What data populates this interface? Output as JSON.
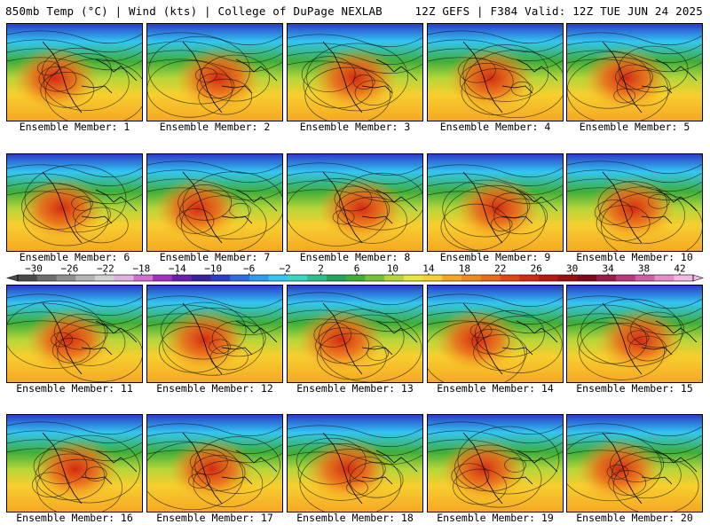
{
  "header": {
    "left_text": "850mb Temp (°C) | Wind (kts) | College of DuPage NEXLAB",
    "right_text": "12Z GEFS | F384 Valid: 12Z TUE JUN 24 2025"
  },
  "members": [
    {
      "label": "Ensemble Member: 1"
    },
    {
      "label": "Ensemble Member: 2"
    },
    {
      "label": "Ensemble Member: 3"
    },
    {
      "label": "Ensemble Member: 4"
    },
    {
      "label": "Ensemble Member: 5"
    },
    {
      "label": "Ensemble Member: 6"
    },
    {
      "label": "Ensemble Member: 7"
    },
    {
      "label": "Ensemble Member: 8"
    },
    {
      "label": "Ensemble Member: 9"
    },
    {
      "label": "Ensemble Member: 10"
    },
    {
      "label": "Ensemble Member: 11"
    },
    {
      "label": "Ensemble Member: 12"
    },
    {
      "label": "Ensemble Member: 13"
    },
    {
      "label": "Ensemble Member: 14"
    },
    {
      "label": "Ensemble Member: 15"
    },
    {
      "label": "Ensemble Member: 16"
    },
    {
      "label": "Ensemble Member: 17"
    },
    {
      "label": "Ensemble Member: 18"
    },
    {
      "label": "Ensemble Member: 19"
    },
    {
      "label": "Ensemble Member: 20"
    }
  ],
  "colorbar": {
    "tick_labels": [
      "−30",
      "−26",
      "−22",
      "−18",
      "−14",
      "−10",
      "−6",
      "−2",
      "2",
      "6",
      "10",
      "14",
      "18",
      "22",
      "26",
      "30",
      "34",
      "38",
      "42"
    ],
    "colors": [
      "#4a4a4a",
      "#6e6e6e",
      "#8f8f8f",
      "#b4b4b4",
      "#d2d2d2",
      "#e0b0e0",
      "#d070d0",
      "#a030c0",
      "#6a1fb0",
      "#3a1fa0",
      "#2a3cc8",
      "#2f6ee0",
      "#2f9cf0",
      "#33c6f2",
      "#39d7c6",
      "#2fbf8f",
      "#21a45a",
      "#3fae3a",
      "#74c23a",
      "#b6d63a",
      "#e8e83a",
      "#f7cf2e",
      "#f5a623",
      "#f08a1e",
      "#ec6a1a",
      "#e24616",
      "#d42a12",
      "#b81810",
      "#9a0f0f",
      "#7e0a1c",
      "#9a1a4a",
      "#b83a7a",
      "#d060a8",
      "#e68ccc",
      "#f4b8e6"
    ]
  }
}
